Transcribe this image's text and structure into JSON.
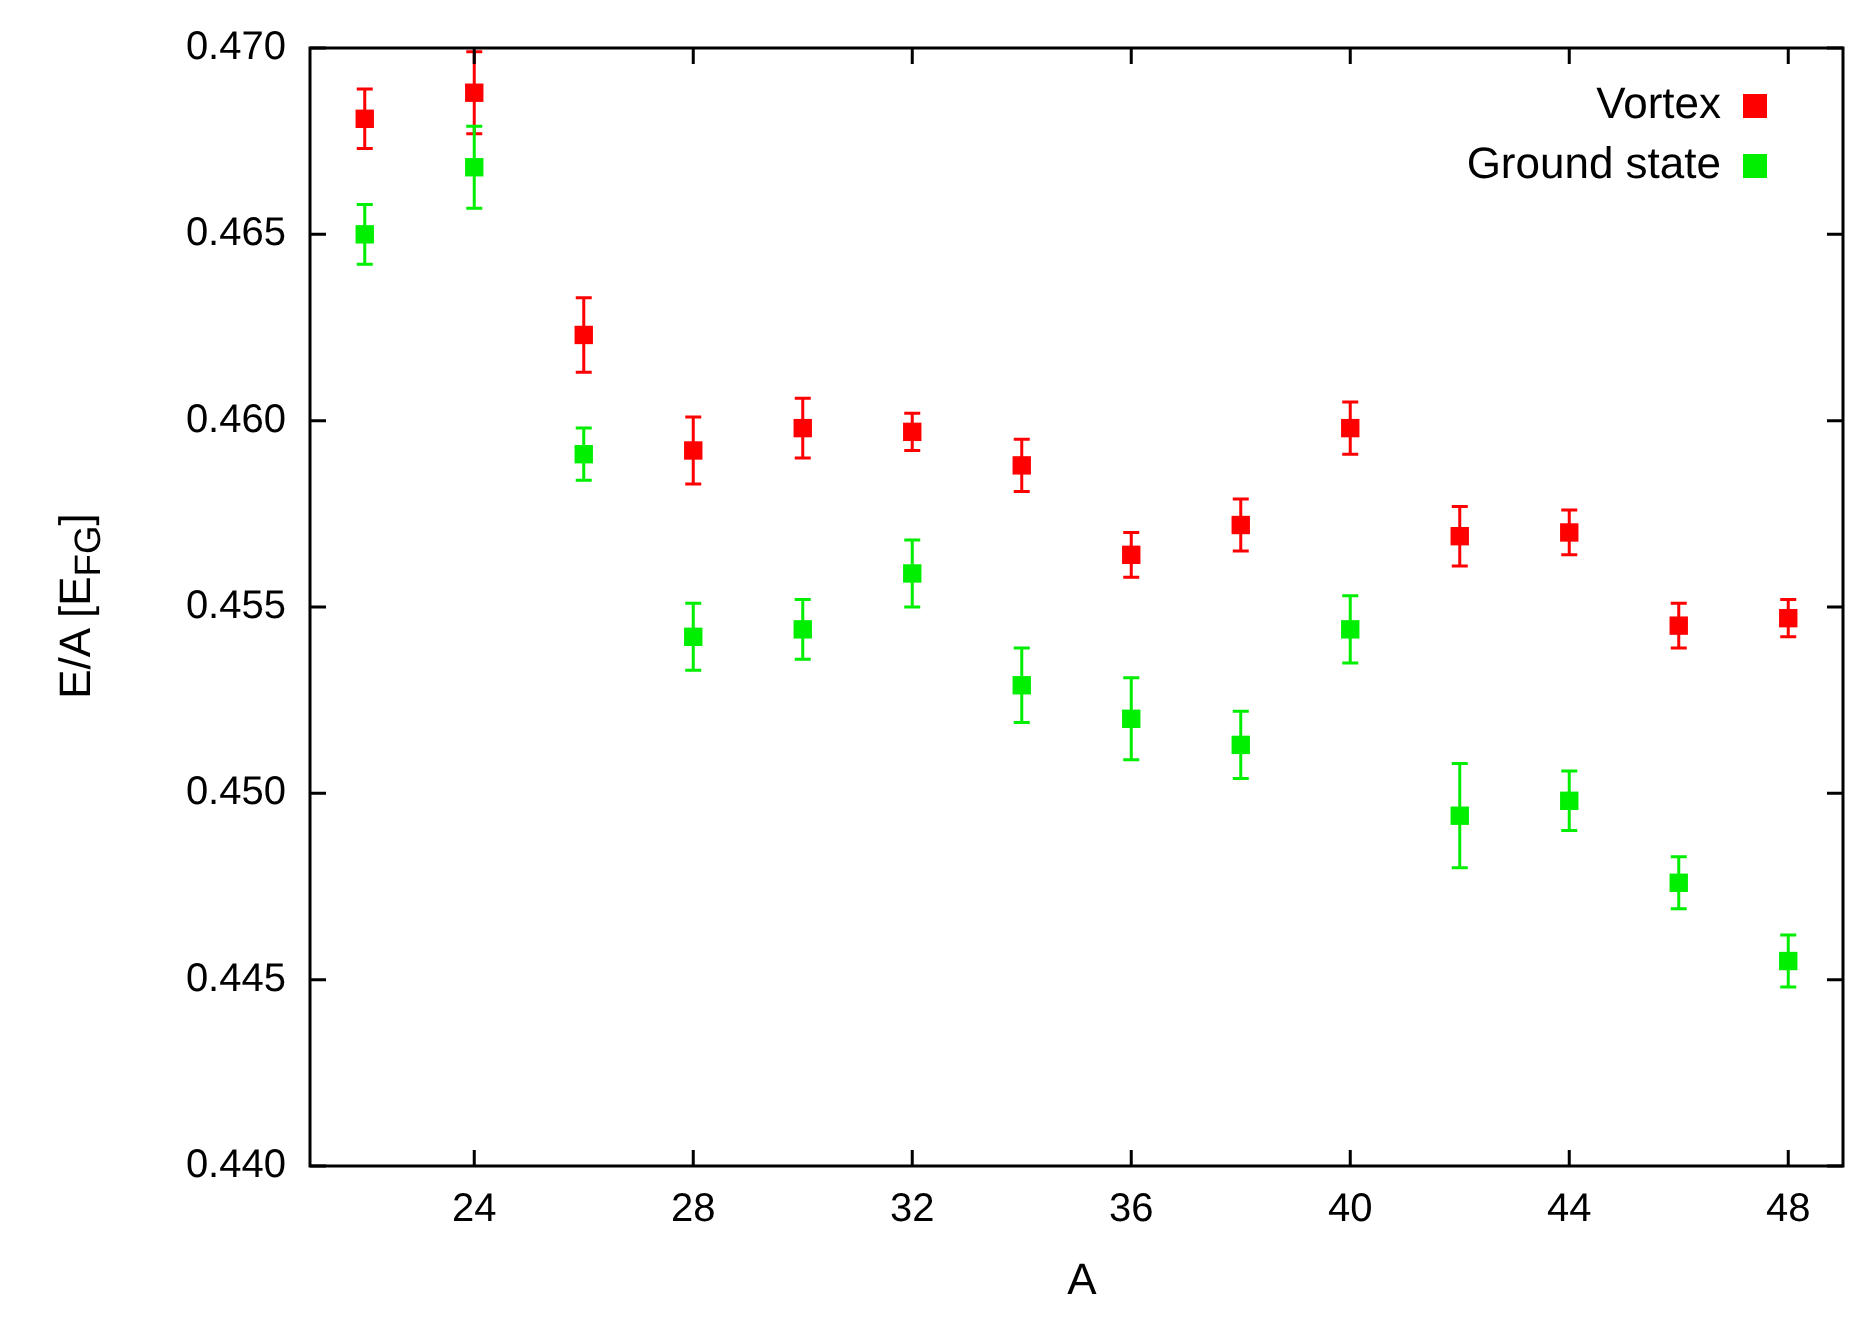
{
  "chart_data": {
    "type": "scatter",
    "xlabel": "A",
    "ylabel": "E/A [E$_{FG}$]",
    "xlim": [
      21,
      49
    ],
    "ylim": [
      0.44,
      0.47
    ],
    "xticks": [
      24,
      28,
      32,
      36,
      40,
      44,
      48
    ],
    "yticks": [
      {
        "value": 0.44,
        "label": "0.440"
      },
      {
        "value": 0.445,
        "label": "0.445"
      },
      {
        "value": 0.45,
        "label": "0.450"
      },
      {
        "value": 0.455,
        "label": "0.455"
      },
      {
        "value": 0.46,
        "label": "0.460"
      },
      {
        "value": 0.465,
        "label": "0.465"
      },
      {
        "value": 0.47,
        "label": "0.470"
      }
    ],
    "marker": "square",
    "legend": "top right",
    "series": [
      {
        "name": "Vortex",
        "color": "#ff0000",
        "x": [
          22,
          24,
          26,
          28,
          30,
          32,
          34,
          36,
          38,
          40,
          42,
          44,
          46,
          48
        ],
        "values": [
          0.4681,
          0.4688,
          0.4623,
          0.4592,
          0.4598,
          0.4597,
          0.4588,
          0.4564,
          0.4572,
          0.4598,
          0.4569,
          0.457,
          0.4545,
          0.4547
        ],
        "errors": [
          0.0008,
          0.0011,
          0.001,
          0.0009,
          0.0008,
          0.0005,
          0.0007,
          0.0006,
          0.0007,
          0.0007,
          0.0008,
          0.0006,
          0.0006,
          0.0005
        ]
      },
      {
        "name": "Ground state",
        "color": "#00ee00",
        "x": [
          22,
          24,
          26,
          28,
          30,
          32,
          34,
          36,
          38,
          40,
          42,
          44,
          46,
          48
        ],
        "values": [
          0.465,
          0.4668,
          0.4591,
          0.4542,
          0.4544,
          0.4559,
          0.4529,
          0.452,
          0.4513,
          0.4544,
          0.4494,
          0.4498,
          0.4476,
          0.4455
        ],
        "errors": [
          0.0008,
          0.0011,
          0.0007,
          0.0009,
          0.0008,
          0.0009,
          0.001,
          0.0011,
          0.0009,
          0.0009,
          0.0014,
          0.0008,
          0.0007,
          0.0007
        ]
      }
    ]
  }
}
